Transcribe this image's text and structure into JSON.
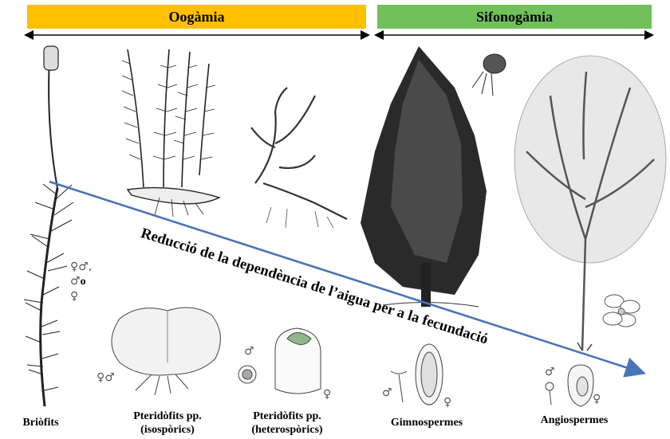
{
  "headers": {
    "left": "Oogàmia",
    "right": "Sifonogàmia",
    "left_color": "#ffc000",
    "right_color": "#70c15a"
  },
  "arrow_label": "Reducció de la dependència de l’aigua per a la fecundació",
  "arrow_color": "#4a74b8",
  "groups": {
    "briofits": "Briòfits",
    "pteridofits_iso_1": "Pteridòfits pp.",
    "pteridofits_iso_2": "(isospòrics)",
    "pteridofits_het_1": "Pteridòfits pp.",
    "pteridofits_het_2": "(heterospòrics)",
    "gimnospermes": "Gimnospermes",
    "angiospermes": "Angiospermes"
  },
  "symbols": {
    "briofits_1": "♀♂,",
    "briofits_2_sym": "♂",
    "briofits_2_o": "o",
    "briofits_3": "♀",
    "iso": "♀♂",
    "het_male": "♂",
    "het_female": "♀",
    "gim_male": "♂",
    "gim_female": "♀",
    "ang_male": "♂",
    "ang_female": "♀"
  },
  "illustrations": [
    "moss",
    "fern",
    "lycophyte",
    "conifer-tree",
    "pine-cone",
    "deciduous-tree",
    "flower",
    "prothallus",
    "megaspore",
    "ovule-gymnosperm",
    "ovule-angiosperm"
  ]
}
